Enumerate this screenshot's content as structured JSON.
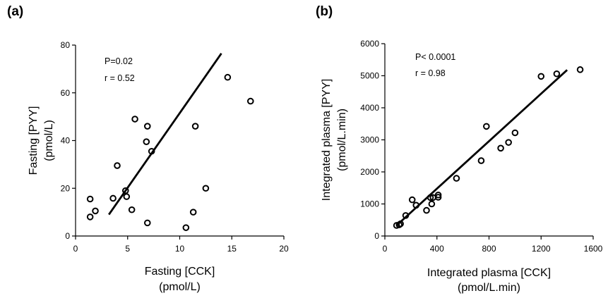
{
  "chart_data": [
    {
      "panel_label": "(a)",
      "type": "scatter",
      "xlabel": "Fasting [CCK]",
      "xunit": "(pmol/L)",
      "ylabel": "Fasting [PYY]",
      "yunit": "(pmol/L)",
      "xlim": [
        0,
        20
      ],
      "ylim": [
        0,
        80
      ],
      "xticks": [
        "0",
        "5",
        "10",
        "15",
        "20"
      ],
      "yticks": [
        "0",
        "20",
        "40",
        "60",
        "80"
      ],
      "annotations": [
        "P=0.02",
        "r = 0.52"
      ],
      "points": [
        {
          "x": 1.4,
          "y": 15.5
        },
        {
          "x": 1.4,
          "y": 8.0
        },
        {
          "x": 1.9,
          "y": 10.5
        },
        {
          "x": 3.6,
          "y": 15.8
        },
        {
          "x": 4.0,
          "y": 29.5
        },
        {
          "x": 4.8,
          "y": 19.0
        },
        {
          "x": 4.9,
          "y": 16.5
        },
        {
          "x": 5.4,
          "y": 11.0
        },
        {
          "x": 5.7,
          "y": 49.0
        },
        {
          "x": 6.8,
          "y": 39.5
        },
        {
          "x": 6.9,
          "y": 46.0
        },
        {
          "x": 6.9,
          "y": 5.5
        },
        {
          "x": 7.3,
          "y": 35.5
        },
        {
          "x": 10.6,
          "y": 3.5
        },
        {
          "x": 11.3,
          "y": 10.0
        },
        {
          "x": 11.5,
          "y": 46.0
        },
        {
          "x": 12.5,
          "y": 20.0
        },
        {
          "x": 14.6,
          "y": 66.5
        },
        {
          "x": 16.8,
          "y": 56.5
        }
      ],
      "fit_line": [
        {
          "x": 3.2,
          "y": 9.0
        },
        {
          "x": 14.0,
          "y": 76.5
        }
      ]
    },
    {
      "panel_label": "(b)",
      "type": "scatter",
      "xlabel": "Integrated plasma [CCK]",
      "xunit": "(pmol/L.min)",
      "ylabel": "Integrated plasma [PYY]",
      "yunit": "(pmol/L.min)",
      "xlim": [
        0,
        1600
      ],
      "ylim": [
        0,
        6000
      ],
      "xticks": [
        "0",
        "400",
        "800",
        "1200",
        "1600"
      ],
      "yticks": [
        "0",
        "1000",
        "2000",
        "3000",
        "4000",
        "5000",
        "6000"
      ],
      "annotations": [
        "P< 0.0001",
        "r = 0.98"
      ],
      "points": [
        {
          "x": 90,
          "y": 330
        },
        {
          "x": 110,
          "y": 350
        },
        {
          "x": 120,
          "y": 380
        },
        {
          "x": 160,
          "y": 640
        },
        {
          "x": 210,
          "y": 1130
        },
        {
          "x": 240,
          "y": 960
        },
        {
          "x": 320,
          "y": 800
        },
        {
          "x": 350,
          "y": 1200
        },
        {
          "x": 360,
          "y": 1000
        },
        {
          "x": 370,
          "y": 1200
        },
        {
          "x": 410,
          "y": 1210
        },
        {
          "x": 410,
          "y": 1280
        },
        {
          "x": 550,
          "y": 1800
        },
        {
          "x": 740,
          "y": 2350
        },
        {
          "x": 780,
          "y": 3420
        },
        {
          "x": 890,
          "y": 2740
        },
        {
          "x": 950,
          "y": 2920
        },
        {
          "x": 1000,
          "y": 3220
        },
        {
          "x": 1200,
          "y": 4980
        },
        {
          "x": 1320,
          "y": 5060
        },
        {
          "x": 1500,
          "y": 5190
        }
      ],
      "fit_line": [
        {
          "x": 90,
          "y": 330
        },
        {
          "x": 1400,
          "y": 5180
        }
      ]
    }
  ]
}
